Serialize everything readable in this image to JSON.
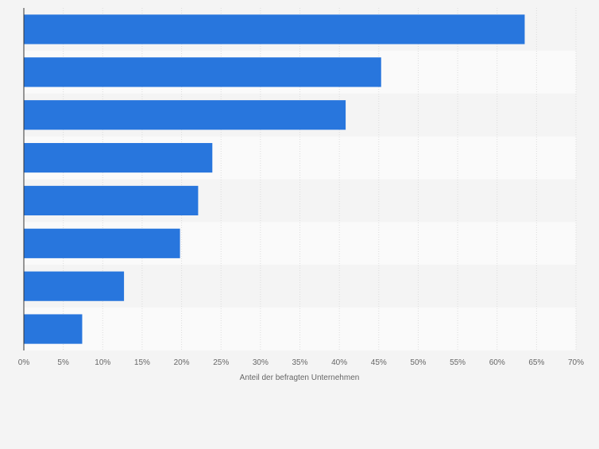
{
  "chart_data": {
    "type": "bar",
    "orientation": "horizontal",
    "categories": [
      "",
      "",
      "",
      "",
      "",
      "",
      "",
      ""
    ],
    "values": [
      63.5,
      45.3,
      40.8,
      23.9,
      22.1,
      19.8,
      12.7,
      7.4
    ],
    "xlabel": "Anteil der befragten Unternehmen",
    "ylabel": "",
    "xlim": [
      0,
      70
    ],
    "x_ticks": [
      0,
      5,
      10,
      15,
      20,
      25,
      30,
      35,
      40,
      45,
      50,
      55,
      60,
      65,
      70
    ],
    "x_tick_labels": [
      "0%",
      "5%",
      "10%",
      "15%",
      "20%",
      "25%",
      "30%",
      "35%",
      "40%",
      "45%",
      "50%",
      "55%",
      "60%",
      "65%",
      "70%"
    ],
    "grid": true,
    "bar_color": "#2876dd",
    "background_color": "#f4f4f4",
    "band_colors": [
      "#f4f4f4",
      "#fafafa"
    ]
  }
}
